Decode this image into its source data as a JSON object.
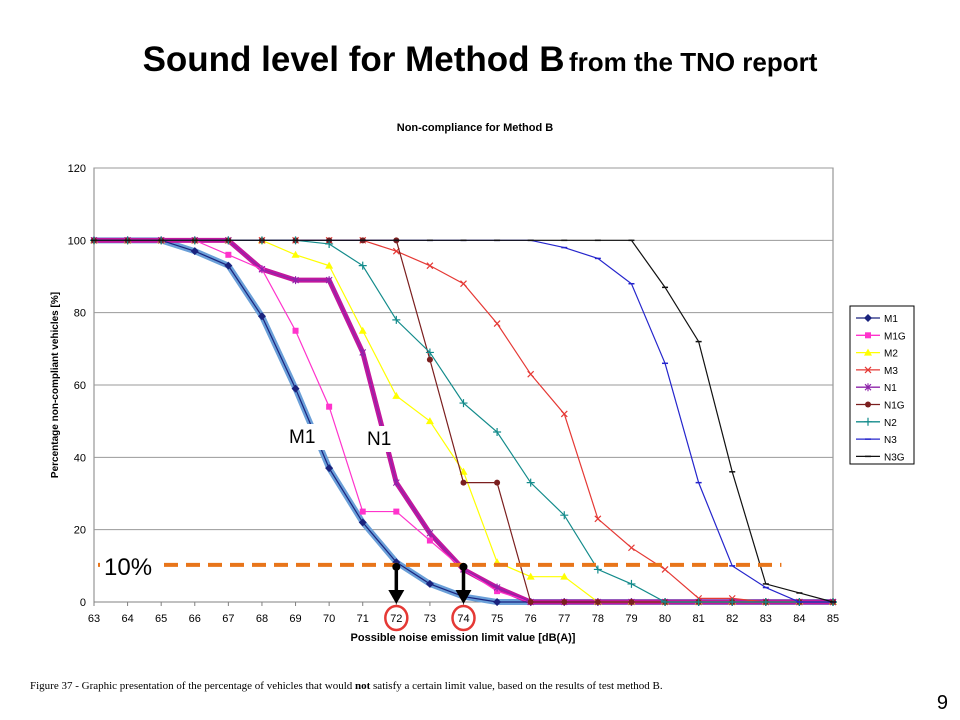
{
  "slide": {
    "title_main": "Sound level for Method B",
    "title_sub": "from the TNO report",
    "caption_prefix": "Figure 37 -   Graphic presentation of the percentage of vehicles that would ",
    "caption_bold": "not",
    "caption_suffix": " satisfy a certain limit value, based on the results of test method B.",
    "page_number": "9"
  },
  "chart_data": {
    "type": "line",
    "title": "Non-compliance for Method B",
    "xlabel": "Possible noise emission limit value [dB(A)]",
    "ylabel": "Percentage non-compliant vehicles [%]",
    "x": [
      63,
      64,
      65,
      66,
      67,
      68,
      69,
      70,
      71,
      72,
      73,
      74,
      75,
      76,
      77,
      78,
      79,
      80,
      81,
      82,
      83,
      84,
      85
    ],
    "xlim": [
      63,
      85
    ],
    "ylim": [
      0,
      120
    ],
    "yticks": [
      0,
      20,
      40,
      60,
      80,
      100,
      120
    ],
    "grid": true,
    "legend_position": "right",
    "series": [
      {
        "name": "M1",
        "color": "#1a237e",
        "marker": "diamond",
        "values": [
          100,
          100,
          100,
          97,
          93,
          79,
          59,
          37,
          22,
          11,
          5,
          1.5,
          0,
          0,
          0,
          0,
          0,
          0,
          0,
          0,
          0,
          0,
          0
        ]
      },
      {
        "name": "M1G",
        "color": "#ff33cc",
        "marker": "square",
        "values": [
          100,
          100,
          100,
          100,
          96,
          92,
          75,
          54,
          25,
          25,
          17,
          9,
          3,
          0,
          0,
          0,
          0,
          0,
          0,
          0,
          0,
          0,
          0
        ]
      },
      {
        "name": "M2",
        "color": "#ffff00",
        "marker": "triangle",
        "values": [
          100,
          100,
          100,
          100,
          100,
          100,
          96,
          93,
          75,
          57,
          50,
          36,
          11,
          7,
          7,
          0,
          0,
          0,
          0,
          0,
          0,
          0,
          0
        ]
      },
      {
        "name": "M3",
        "color": "#e53935",
        "marker": "x",
        "values": [
          100,
          100,
          100,
          100,
          100,
          100,
          100,
          100,
          100,
          97,
          93,
          88,
          77,
          63,
          52,
          23,
          15,
          9,
          1,
          1,
          0,
          0,
          0
        ]
      },
      {
        "name": "N1",
        "color": "#8e24aa",
        "marker": "star",
        "values": [
          100,
          100,
          100,
          100,
          100,
          92,
          89,
          89,
          69,
          33,
          19,
          9,
          4,
          0,
          0,
          0,
          0,
          0,
          0,
          0,
          0,
          0,
          0
        ]
      },
      {
        "name": "N1G",
        "color": "#7b1f1f",
        "marker": "circle",
        "values": [
          100,
          100,
          100,
          100,
          100,
          100,
          100,
          100,
          100,
          100,
          67,
          33,
          33,
          0,
          0,
          0,
          0,
          0,
          0,
          0,
          0,
          0,
          0
        ]
      },
      {
        "name": "N2",
        "color": "#138b8b",
        "marker": "plus",
        "values": [
          100,
          100,
          100,
          100,
          100,
          100,
          100,
          99,
          93,
          78,
          69,
          55,
          47,
          33,
          24,
          9,
          5,
          0,
          0,
          0,
          0,
          0,
          0
        ]
      },
      {
        "name": "N3",
        "color": "#2525cc",
        "marker": "dash",
        "values": [
          100,
          100,
          100,
          100,
          100,
          100,
          100,
          100,
          100,
          100,
          100,
          100,
          100,
          100,
          98,
          95,
          88,
          66,
          33,
          10,
          4,
          0,
          0
        ]
      },
      {
        "name": "N3G",
        "color": "#111111",
        "marker": "dash",
        "values": [
          100,
          100,
          100,
          100,
          100,
          100,
          100,
          100,
          100,
          100,
          100,
          100,
          100,
          100,
          100,
          100,
          100,
          87,
          72,
          36,
          5,
          2.5,
          0
        ]
      }
    ],
    "overlays": {
      "threshold_value": 10,
      "threshold_label": "10%",
      "threshold_color": "#e8751a",
      "highlight_m1_color": "#6a9fd8",
      "highlight_n1_color": "#c2179e",
      "label_m1": "M1",
      "label_n1": "N1",
      "circled_ticks": [
        72,
        74
      ],
      "circle_color": "#e53935"
    }
  }
}
